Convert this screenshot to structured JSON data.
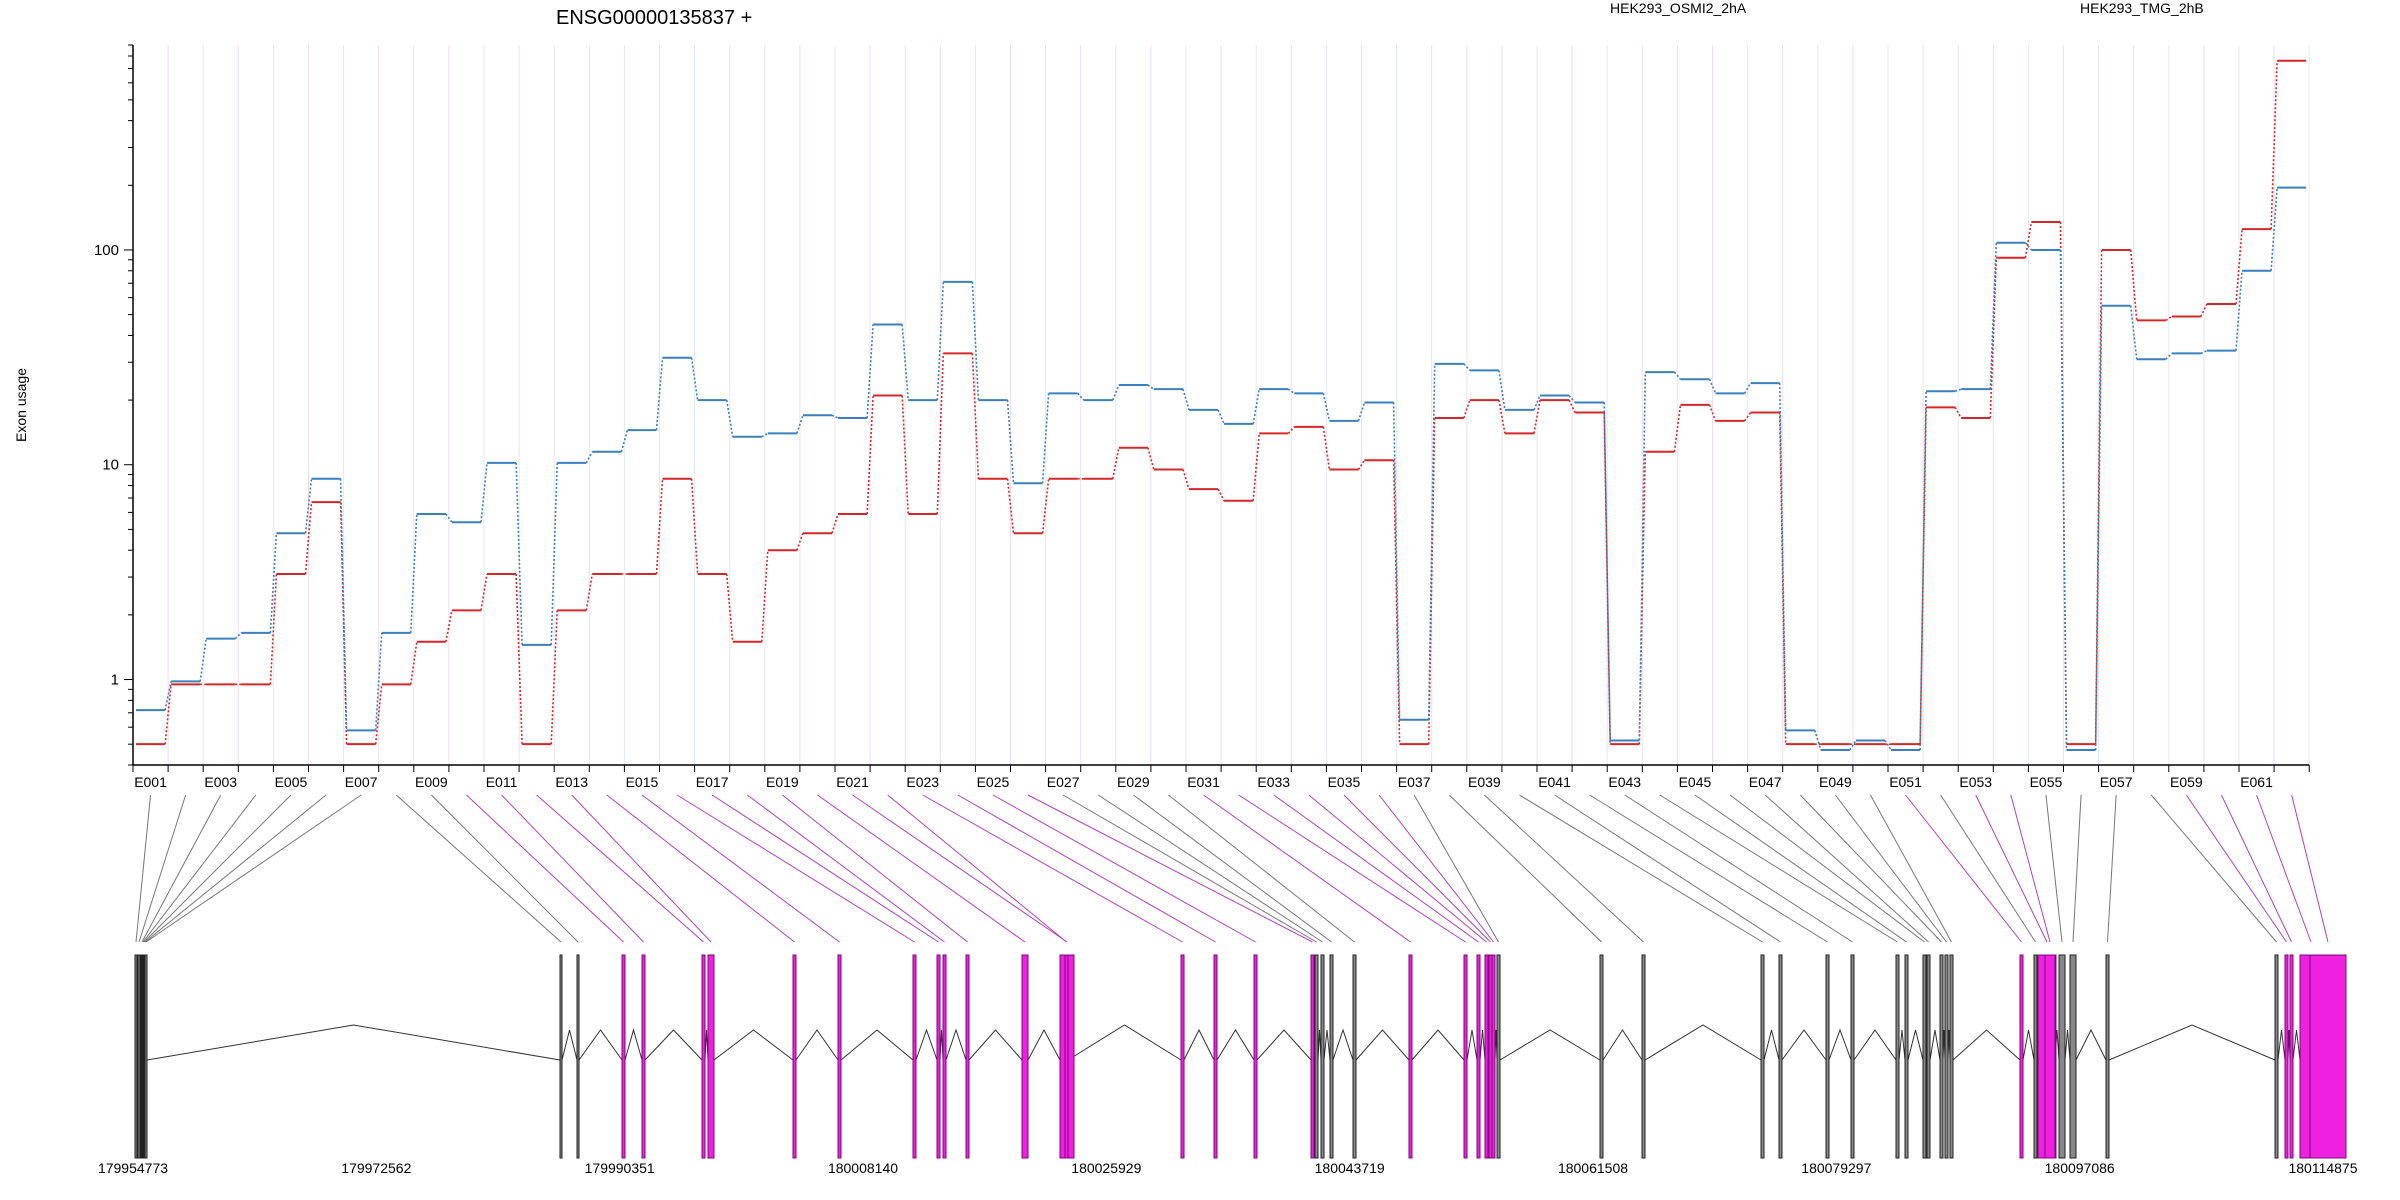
{
  "chart_data": {
    "type": "line",
    "title": "ENSG00000135837 +",
    "ylabel": "Exon usage",
    "yscale": "log",
    "ylim": [
      0.4,
      900
    ],
    "yticks": [
      1,
      10,
      100
    ],
    "ytick_labels": [
      "1",
      "10",
      "100"
    ],
    "grid": true,
    "legend_placement": "top",
    "categories": [
      "E001",
      "E002",
      "E003",
      "E004",
      "E005",
      "E006",
      "E007",
      "E008",
      "E009",
      "E010",
      "E011",
      "E012",
      "E013",
      "E014",
      "E015",
      "E016",
      "E017",
      "E018",
      "E019",
      "E020",
      "E021",
      "E022",
      "E023",
      "E024",
      "E025",
      "E026",
      "E027",
      "E028",
      "E029",
      "E030",
      "E031",
      "E032",
      "E033",
      "E034",
      "E035",
      "E036",
      "E037",
      "E038",
      "E039",
      "E040",
      "E041",
      "E042",
      "E043",
      "E044",
      "E045",
      "E046",
      "E047",
      "E048",
      "E049",
      "E050",
      "E051",
      "E052",
      "E053",
      "E054",
      "E055",
      "E056",
      "E057",
      "E058",
      "E059",
      "E060",
      "E061",
      "E062"
    ],
    "xtick_labels": [
      "E001",
      "E003",
      "E005",
      "E007",
      "E009",
      "E011",
      "E013",
      "E015",
      "E017",
      "E019",
      "E021",
      "E023",
      "E025",
      "E027",
      "E029",
      "E031",
      "E033",
      "E035",
      "E037",
      "E039",
      "E041",
      "E043",
      "E045",
      "E047",
      "E049",
      "E051",
      "E053",
      "E055",
      "E057",
      "E059",
      "E061"
    ],
    "series": [
      {
        "name": "HEK293_OSMI2_2hA",
        "color": "#d62728",
        "values": [
          0.5,
          0.95,
          0.95,
          0.95,
          3.1,
          6.7,
          0.5,
          0.95,
          1.5,
          2.1,
          3.1,
          0.5,
          2.1,
          3.1,
          3.1,
          8.6,
          3.1,
          1.5,
          4.0,
          4.8,
          5.9,
          21,
          5.9,
          33,
          8.6,
          4.8,
          8.6,
          8.6,
          12,
          9.5,
          7.7,
          6.8,
          14,
          15,
          9.5,
          10.5,
          0.5,
          16.5,
          20,
          14,
          20,
          17.5,
          0.5,
          11.5,
          19,
          16,
          17.5,
          0.5,
          0.5,
          0.5,
          0.5,
          18.5,
          16.5,
          92,
          135,
          0.5,
          100,
          47,
          49,
          56,
          125,
          760
        ]
      },
      {
        "name": "HEK293_TMG_2hB",
        "color": "#3a7fbf",
        "values": [
          0.72,
          0.98,
          1.55,
          1.65,
          4.8,
          8.6,
          0.58,
          1.65,
          5.9,
          5.4,
          10.2,
          1.45,
          10.2,
          11.5,
          14.5,
          31.5,
          20,
          13.5,
          14,
          17,
          16.5,
          45,
          20,
          71,
          20,
          8.2,
          21.5,
          20,
          23.5,
          22.5,
          18,
          15.5,
          22.5,
          21.5,
          16,
          19.5,
          0.65,
          29.5,
          27.5,
          18,
          21,
          19.5,
          0.52,
          27,
          25,
          21.5,
          24,
          0.58,
          0.47,
          0.52,
          0.47,
          22,
          22.5,
          108,
          100,
          0.47,
          55,
          31,
          33,
          34,
          80,
          195
        ]
      }
    ],
    "gene_model": {
      "coordinate_labels": [
        "179954773",
        "179972562",
        "179990351",
        "180008140",
        "180025929",
        "180043719",
        "180061508",
        "180079297",
        "180097086",
        "180114875"
      ]
    }
  }
}
